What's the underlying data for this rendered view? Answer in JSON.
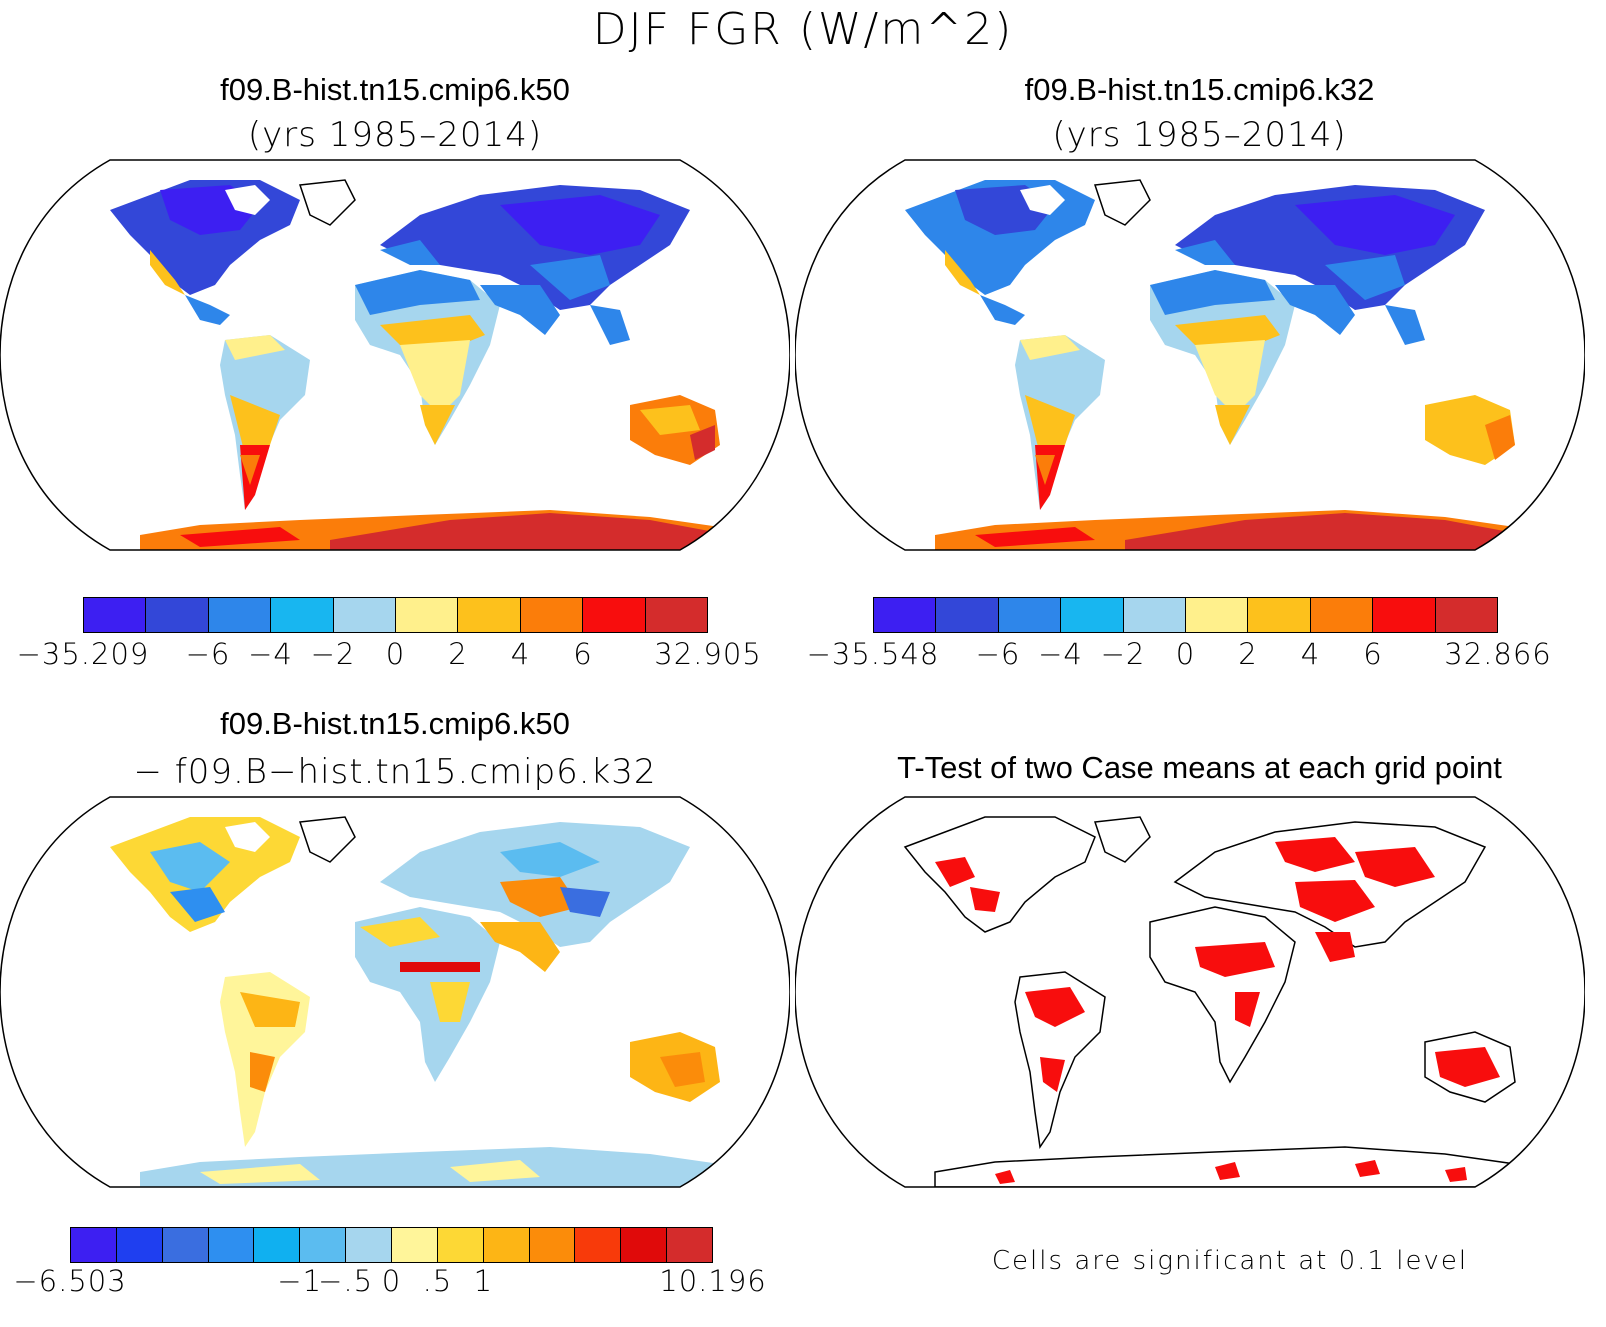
{
  "figure": {
    "title": "DJF FGR (W/m^2)"
  },
  "panels": [
    {
      "title": "f09.B-hist.tn15.cmip6.k50",
      "subtitle": "(yrs 1985–2014)",
      "colorbar": {
        "colors": [
          "#3d1ff2",
          "#3347d8",
          "#2e86ea",
          "#18b6f0",
          "#a6d6ee",
          "#fff08c",
          "#fdc11c",
          "#fb7d0a",
          "#f80d0d",
          "#d42c2c"
        ],
        "tick_labels": [
          "−35.209",
          "−6",
          "−4",
          "−2",
          "0",
          "2",
          "4",
          "6",
          "32.905"
        ]
      }
    },
    {
      "title": "f09.B-hist.tn15.cmip6.k32",
      "subtitle": "(yrs 1985–2014)",
      "colorbar": {
        "colors": [
          "#3d1ff2",
          "#3347d8",
          "#2e86ea",
          "#18b6f0",
          "#a6d6ee",
          "#fff08c",
          "#fdc11c",
          "#fb7d0a",
          "#f80d0d",
          "#d42c2c"
        ],
        "tick_labels": [
          "−35.548",
          "−6",
          "−4",
          "−2",
          "0",
          "2",
          "4",
          "6",
          "32.866"
        ]
      }
    },
    {
      "title": "f09.B-hist.tn15.cmip6.k50",
      "subtitle": "− f09.B−hist.tn15.cmip6.k32",
      "colorbar": {
        "colors": [
          "#3d1ff2",
          "#1f3ff0",
          "#3a6ee0",
          "#2e8ff0",
          "#10b0f0",
          "#5bbcf0",
          "#a6d6ee",
          "#fff59a",
          "#fdd835",
          "#fdb515",
          "#fb8c0a",
          "#f83a0a",
          "#e00a0a",
          "#d42c2c"
        ],
        "tick_labels": [
          "−6.503",
          "−1",
          "−.5",
          "0",
          ".5",
          "1",
          "10.196"
        ]
      }
    },
    {
      "title": "T-Test of two Case means at each grid point",
      "note": "Cells are significant at 0.1 level",
      "significance_color": "#f80d0d"
    }
  ]
}
